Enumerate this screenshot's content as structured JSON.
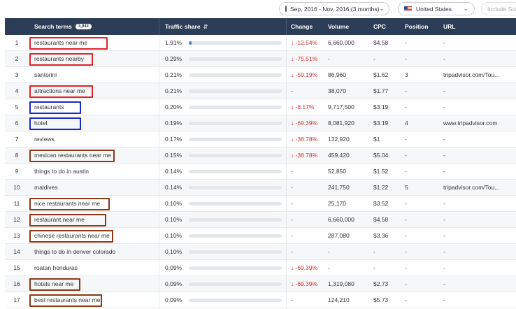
{
  "header": {
    "date_range": "Sep, 2016 - Nov, 2016 (3 months)",
    "country": "United States",
    "include_label": "Include Sub"
  },
  "columns": {
    "terms": "Search terms",
    "terms_count": "3,942",
    "share": "Traffic share",
    "change": "Change",
    "volume": "Volume",
    "cpc": "CPC",
    "position": "Position",
    "url": "URL"
  },
  "colors": {
    "header_bg": "#2b3d57",
    "bar_fill": "#3b7dd8",
    "negative": "#d0302f",
    "box_red": "#e0222a",
    "box_blue": "#1c28c4",
    "box_brown": "#8a3a16"
  },
  "rows": [
    {
      "num": "1",
      "term": "restaurants near me",
      "share": "1.91%",
      "share_fraction": 0.03,
      "change": "-12.54%",
      "neg": true,
      "volume": "6,660,000",
      "cpc": "$4.58",
      "position": "-",
      "url": "-",
      "box": "red",
      "box_w": 112
    },
    {
      "num": "2",
      "term": "restaurants nearby",
      "share": "0.29%",
      "share_fraction": 0,
      "change": "-75.51%",
      "neg": true,
      "volume": "-",
      "cpc": "-",
      "position": "-",
      "url": "-",
      "box": "red",
      "box_w": 91
    },
    {
      "num": "3",
      "term": "santorini",
      "share": "0.21%",
      "share_fraction": 0,
      "change": "-59.19%",
      "neg": true,
      "volume": "86,960",
      "cpc": "$1.62",
      "position": "3",
      "url": "tripadvisor.com/Tou...",
      "box": "",
      "box_w": 0
    },
    {
      "num": "4",
      "term": "attractions near me",
      "share": "0.21%",
      "share_fraction": 0,
      "change": "-",
      "neg": false,
      "volume": "38,070",
      "cpc": "$1.77",
      "position": "-",
      "url": "-",
      "box": "red",
      "box_w": 91
    },
    {
      "num": "5",
      "term": "restaurants",
      "share": "0.20%",
      "share_fraction": 0,
      "change": "-8.17%",
      "neg": true,
      "volume": "9,717,500",
      "cpc": "$3.19",
      "position": "-",
      "url": "-",
      "box": "blue",
      "box_w": 74
    },
    {
      "num": "6",
      "term": "hotel",
      "share": "0.19%",
      "share_fraction": 0,
      "change": "-69.39%",
      "neg": true,
      "volume": "8,081,920",
      "cpc": "$3.19",
      "position": "4",
      "url": "www.tripadvisor.com",
      "box": "blue",
      "box_w": 74
    },
    {
      "num": "7",
      "term": "reviews",
      "share": "0.17%",
      "share_fraction": 0,
      "change": "-38.78%",
      "neg": true,
      "volume": "132,920",
      "cpc": "$1",
      "position": "-",
      "url": "-",
      "box": "",
      "box_w": 0
    },
    {
      "num": "8",
      "term": "mexican restaurants near me",
      "share": "0.15%",
      "share_fraction": 0,
      "change": "-38.78%",
      "neg": true,
      "volume": "459,420",
      "cpc": "$5.04",
      "position": "-",
      "url": "-",
      "box": "brown",
      "box_w": 122
    },
    {
      "num": "9",
      "term": "things to do in austin",
      "share": "0.14%",
      "share_fraction": 0,
      "change": "-",
      "neg": false,
      "volume": "52,850",
      "cpc": "$1.52",
      "position": "-",
      "url": "-",
      "box": "",
      "box_w": 0
    },
    {
      "num": "10",
      "term": "maldives",
      "share": "0.14%",
      "share_fraction": 0,
      "change": "-",
      "neg": false,
      "volume": "241,750",
      "cpc": "$1.22",
      "position": "5",
      "url": "tripadvisor.com/Tou...",
      "box": "",
      "box_w": 0
    },
    {
      "num": "11",
      "term": "nice restaurants near me",
      "share": "0.10%",
      "share_fraction": 0,
      "change": "-",
      "neg": false,
      "volume": "25,170",
      "cpc": "$3.52",
      "position": "-",
      "url": "-",
      "box": "brown",
      "box_w": 115
    },
    {
      "num": "12",
      "term": "restaurant near me",
      "share": "0.10%",
      "share_fraction": 0,
      "change": "-",
      "neg": false,
      "volume": "6,660,000",
      "cpc": "$4.58",
      "position": "-",
      "url": "-",
      "box": "brown",
      "box_w": 110
    },
    {
      "num": "13",
      "term": "chinese restaurants near me",
      "share": "0.10%",
      "share_fraction": 0,
      "change": "-",
      "neg": false,
      "volume": "287,080",
      "cpc": "$3.36",
      "position": "-",
      "url": "-",
      "box": "brown",
      "box_w": 120
    },
    {
      "num": "14",
      "term": "things to do in denver colorado",
      "share": "0.10%",
      "share_fraction": 0,
      "change": "-",
      "neg": false,
      "volume": "-",
      "cpc": "-",
      "position": "-",
      "url": "-",
      "box": "",
      "box_w": 0
    },
    {
      "num": "15",
      "term": "roatan honduras",
      "share": "0.09%",
      "share_fraction": 0,
      "change": "-69.39%",
      "neg": true,
      "volume": "-",
      "cpc": "-",
      "position": "-",
      "url": "-",
      "box": "",
      "box_w": 0
    },
    {
      "num": "16",
      "term": "hotels near me",
      "share": "0.09%",
      "share_fraction": 0,
      "change": "-69.39%",
      "neg": true,
      "volume": "1,319,080",
      "cpc": "$2.73",
      "position": "-",
      "url": "-",
      "box": "brown",
      "box_w": 73
    },
    {
      "num": "17",
      "term": "best restaurants near me",
      "share": "0.09%",
      "share_fraction": 0,
      "change": "-",
      "neg": false,
      "volume": "124,210",
      "cpc": "$5.73",
      "position": "-",
      "url": "-",
      "box": "brown",
      "box_w": 104
    }
  ]
}
